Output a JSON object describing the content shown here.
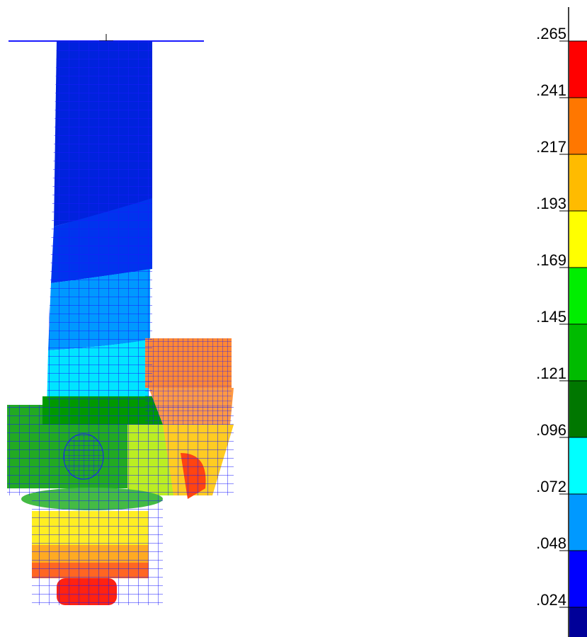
{
  "legend": {
    "levels": [
      {
        "label": ".265",
        "color": "#ff0000"
      },
      {
        "label": ".241",
        "color": "#ff7700"
      },
      {
        "label": ".217",
        "color": "#ffbb00"
      },
      {
        "label": ".193",
        "color": "#ffff00"
      },
      {
        "label": ".169",
        "color": "#00ee00"
      },
      {
        "label": ".145",
        "color": "#00bb00"
      },
      {
        "label": ".121",
        "color": "#007700"
      },
      {
        "label": ".096",
        "color": "#00ffff"
      },
      {
        "label": ".072",
        "color": "#0099ff"
      },
      {
        "label": ".048",
        "color": "#0000ff"
      },
      {
        "label": ".024",
        "color": "#000099"
      }
    ]
  }
}
